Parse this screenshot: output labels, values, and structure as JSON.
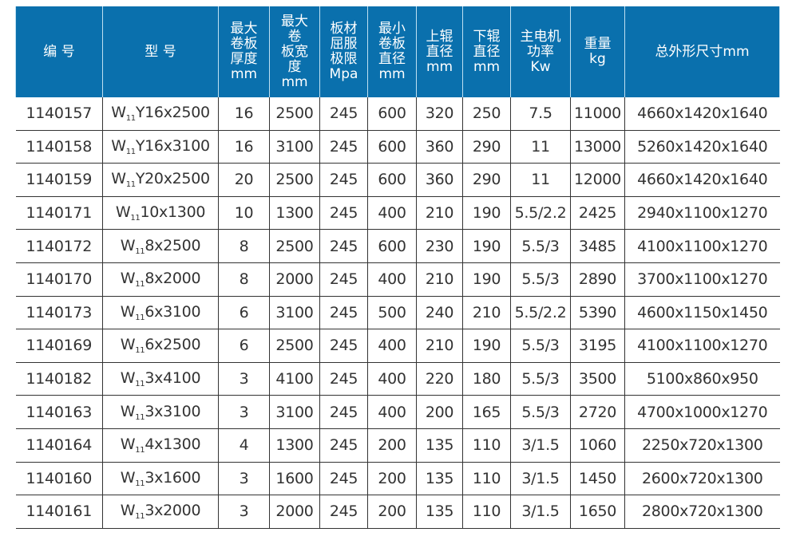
{
  "colors": {
    "header_bg": "#0a70ad",
    "header_text": "#ffffff"
  },
  "headers": [
    "编 号",
    "型 号",
    "最大\n卷板\n厚度\nmm",
    "最大\n卷\n板宽\n度\nmm",
    "板材\n屈服\n极限\nMpa",
    "最小\n卷板\n直径\nmm",
    "上辊\n直径\nmm",
    "下辊\n直径\nmm",
    "主电机\n功率\nKw",
    "重量\nkg",
    "总外形尺寸mm"
  ],
  "rows": [
    {
      "id": "1140157",
      "model_prefix": "W",
      "model_sub": "11",
      "model_rest": "Y16x2500",
      "cells": [
        "16",
        "2500",
        "245",
        "600",
        "320",
        "250",
        "7.5",
        "11000",
        "4660x1420x1640"
      ]
    },
    {
      "id": "1140158",
      "model_prefix": "W",
      "model_sub": "11",
      "model_rest": "Y16x3100",
      "cells": [
        "16",
        "3100",
        "245",
        "600",
        "360",
        "290",
        "11",
        "13000",
        "5260x1420x1640"
      ]
    },
    {
      "id": "1140159",
      "model_prefix": "W",
      "model_sub": "11",
      "model_rest": "Y20x2500",
      "cells": [
        "20",
        "2500",
        "245",
        "600",
        "360",
        "290",
        "11",
        "12000",
        "4660x1420x1640"
      ]
    },
    {
      "id": "1140171",
      "model_prefix": "W",
      "model_sub": "11",
      "model_rest": "10x1300",
      "cells": [
        "10",
        "1300",
        "245",
        "400",
        "210",
        "190",
        "5.5/2.2",
        "2425",
        "2940x1100x1270"
      ]
    },
    {
      "id": "1140172",
      "model_prefix": "W",
      "model_sub": "11",
      "model_rest": "8x2500",
      "cells": [
        "8",
        "2500",
        "245",
        "600",
        "230",
        "190",
        "5.5/3",
        "3485",
        "4100x1100x1270"
      ]
    },
    {
      "id": "1140170",
      "model_prefix": "W",
      "model_sub": "11",
      "model_rest": "8x2000",
      "cells": [
        "8",
        "2000",
        "245",
        "400",
        "210",
        "190",
        "5.5/3",
        "2890",
        "3700x1100x1270"
      ]
    },
    {
      "id": "1140173",
      "model_prefix": "W",
      "model_sub": "11",
      "model_rest": "6x3100",
      "cells": [
        "6",
        "3100",
        "245",
        "500",
        "240",
        "210",
        "5.5/2.2",
        "5390",
        "4600x1150x1450"
      ]
    },
    {
      "id": "1140169",
      "model_prefix": "W",
      "model_sub": "11",
      "model_rest": "6x2500",
      "cells": [
        "6",
        "2500",
        "245",
        "400",
        "210",
        "190",
        "5.5/3",
        "3195",
        "4100x1100x1270"
      ]
    },
    {
      "id": "1140182",
      "model_prefix": "W",
      "model_sub": "11",
      "model_rest": "3x4100",
      "cells": [
        "3",
        "4100",
        "245",
        "400",
        "220",
        "180",
        "5.5/3",
        "3500",
        "5100x860x950"
      ]
    },
    {
      "id": "1140163",
      "model_prefix": "W",
      "model_sub": "11",
      "model_rest": "3x3100",
      "cells": [
        "3",
        "3100",
        "245",
        "400",
        "200",
        "165",
        "5.5/3",
        "2720",
        "4700x1000x1270"
      ]
    },
    {
      "id": "1140164",
      "model_prefix": "W",
      "model_sub": "11",
      "model_rest": "4x1300",
      "cells": [
        "4",
        "1300",
        "245",
        "200",
        "135",
        "110",
        "3/1.5",
        "1060",
        "2250x720x1300"
      ]
    },
    {
      "id": "1140160",
      "model_prefix": "W",
      "model_sub": "11",
      "model_rest": "3x1600",
      "cells": [
        "3",
        "1600",
        "245",
        "200",
        "135",
        "110",
        "3/1.5",
        "1450",
        "2600x720x1300"
      ]
    },
    {
      "id": "1140161",
      "model_prefix": "W",
      "model_sub": "11",
      "model_rest": "3x2000",
      "cells": [
        "3",
        "2000",
        "245",
        "200",
        "135",
        "110",
        "3/1.5",
        "1650",
        "2800x720x1300"
      ]
    }
  ]
}
